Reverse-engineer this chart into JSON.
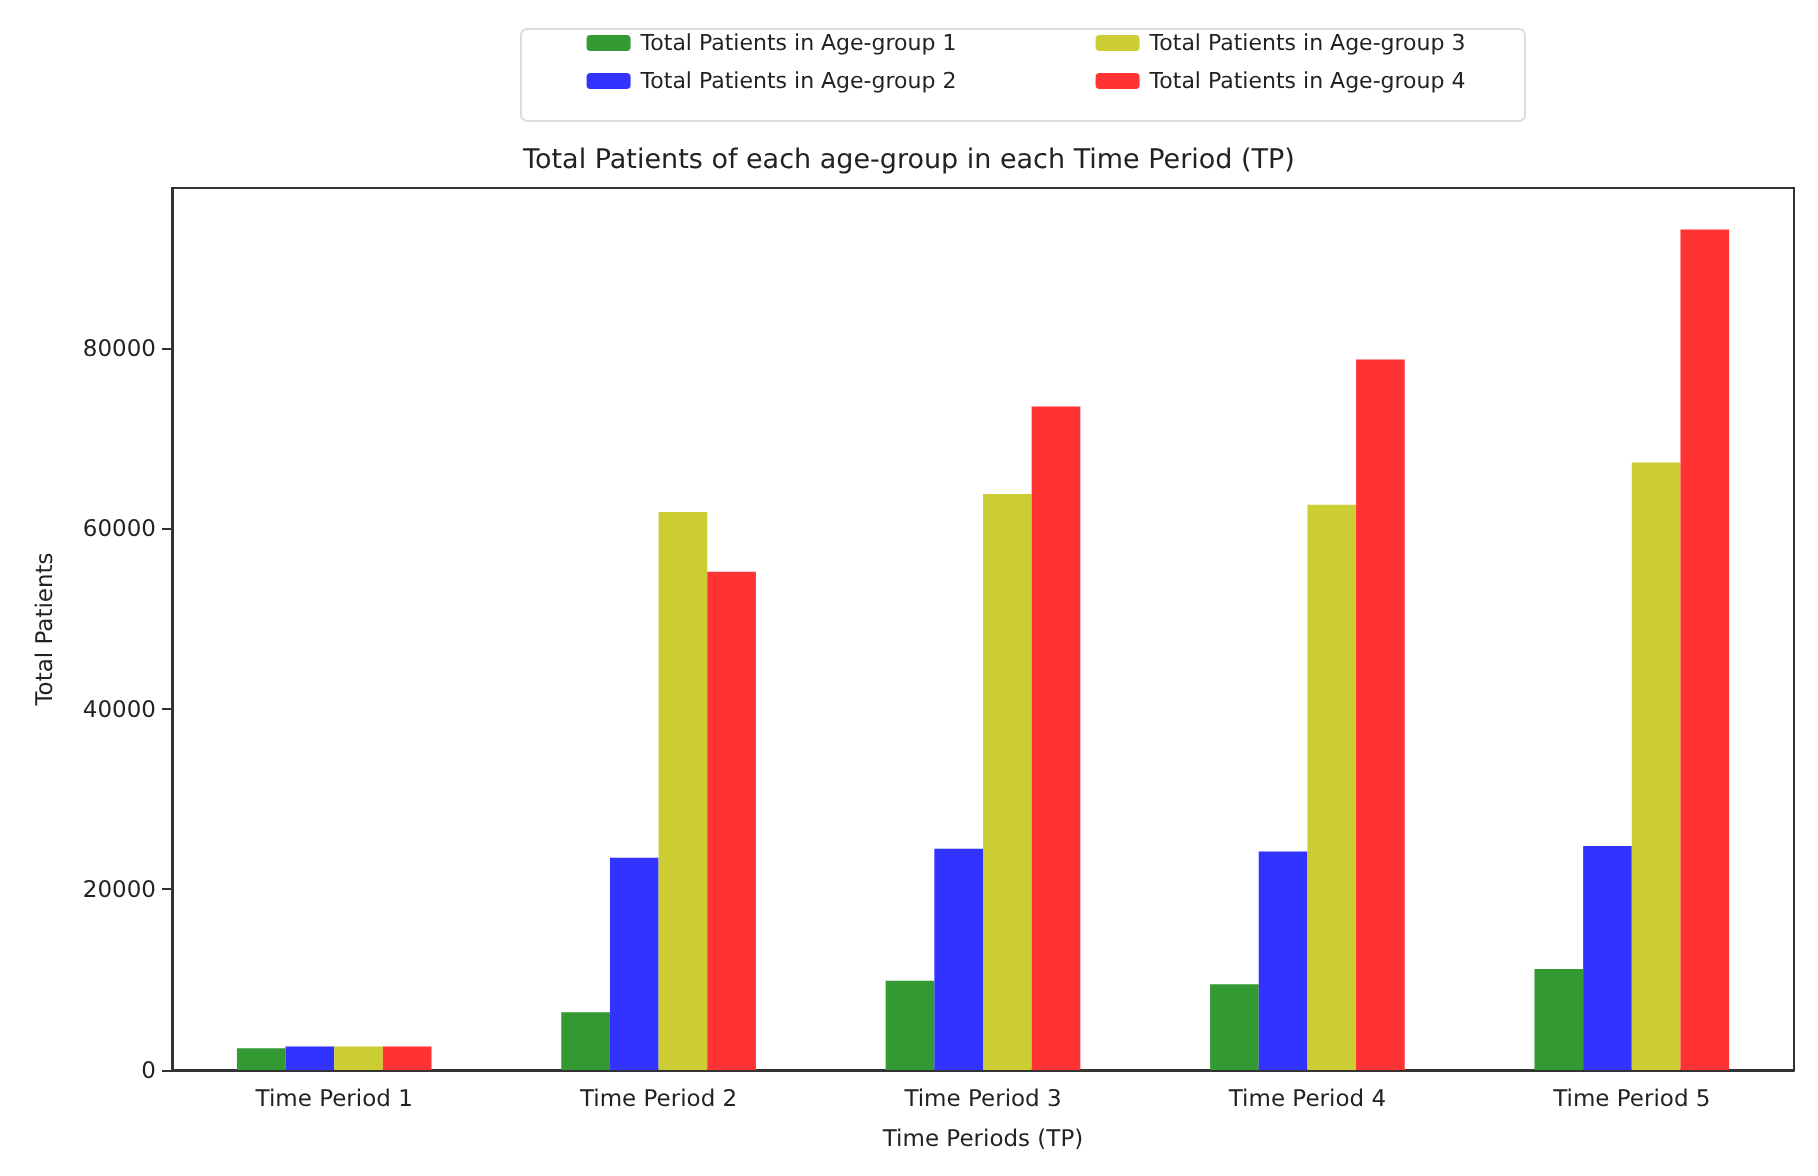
{
  "chart_data": {
    "type": "bar",
    "title": "Total Patients of each age-group in each Time Period (TP)",
    "xlabel": "Time Periods (TP)",
    "ylabel": "Total Patients",
    "categories": [
      "Time Period 1",
      "Time Period 2",
      "Time Period 3",
      "Time Period 4",
      "Time Period 5"
    ],
    "series": [
      {
        "name": "Total Patients in Age-group 1",
        "color": "#339933",
        "values": [
          2400,
          6400,
          9900,
          9500,
          11200
        ]
      },
      {
        "name": "Total Patients in Age-group 2",
        "color": "#3333ff",
        "values": [
          2600,
          23500,
          24500,
          24200,
          24800
        ]
      },
      {
        "name": "Total Patients in Age-group 3",
        "color": "#cccc33",
        "values": [
          2600,
          61800,
          63800,
          62600,
          67300
        ]
      },
      {
        "name": "Total Patients in Age-group 4",
        "color": "#ff3333",
        "values": [
          2600,
          55200,
          73500,
          78700,
          93100
        ]
      }
    ],
    "ylim": [
      0,
      97700
    ],
    "yticks": [
      0,
      20000,
      40000,
      60000,
      80000
    ],
    "grid": false,
    "legend": "top"
  }
}
